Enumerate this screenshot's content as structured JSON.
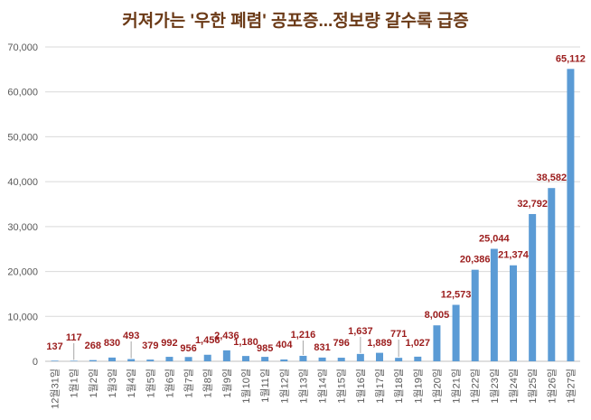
{
  "chart_data": {
    "type": "bar",
    "title": "커져가는 '우한 폐렴' 공포증...정보량 갈수록 급증",
    "xlabel": "",
    "ylabel": "",
    "ylim": [
      0,
      70000
    ],
    "yticks": [
      "0",
      "10,000",
      "20,000",
      "30,000",
      "40,000",
      "50,000",
      "60,000",
      "70,000"
    ],
    "grid": true,
    "legend": "none",
    "bar_color": "#5b9bd5",
    "label_color": "#9b1c1c",
    "title_color": "#6b3a17",
    "categories": [
      "12월31일",
      "1월1일",
      "1월2일",
      "1월3일",
      "1월4일",
      "1월5일",
      "1월6일",
      "1월7일",
      "1월8일",
      "1월9일",
      "1월10일",
      "1월11일",
      "1월12일",
      "1월13일",
      "1월14일",
      "1월15일",
      "1월16일",
      "1월17일",
      "1월18일",
      "1월19일",
      "1월20일",
      "1월21일",
      "1월22일",
      "1월23일",
      "1월24일",
      "1월25일",
      "1월26일",
      "1월27일"
    ],
    "values": [
      137,
      117,
      268,
      830,
      493,
      379,
      992,
      956,
      1456,
      2436,
      1180,
      985,
      404,
      1216,
      831,
      796,
      1637,
      1889,
      771,
      1027,
      8005,
      12573,
      20386,
      25044,
      21374,
      32792,
      38582,
      65112
    ],
    "data_labels": [
      "137",
      "117",
      "268",
      "830",
      "493",
      "379",
      "992",
      "956",
      "1,456",
      "2,436",
      "1,180",
      "985",
      "404",
      "1,216",
      "831",
      "796",
      "1,637",
      "1,889",
      "771",
      "1,027",
      "8,005",
      "12,573",
      "20,386",
      "25,044",
      "21,374",
      "32,792",
      "38,582",
      "65,112"
    ]
  }
}
